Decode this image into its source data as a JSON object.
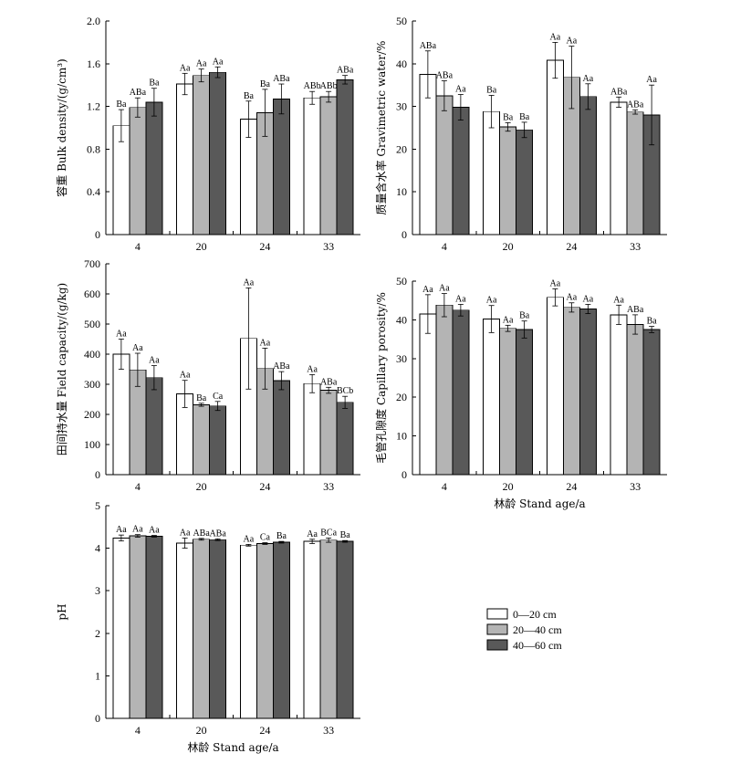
{
  "colors": {
    "s0": "#ffffff",
    "s1": "#b4b4b4",
    "s2": "#595959",
    "stroke": "#000000"
  },
  "legend": {
    "position": "bottom-right",
    "entries": [
      "0—20 cm",
      "20—40 cm",
      "40—60 cm"
    ]
  },
  "chart_data": [
    {
      "id": "bulk",
      "type": "bar",
      "ylabel": "容重 Bulk density/(g/cm³)",
      "xlabel": "",
      "ylim": [
        0,
        2.0
      ],
      "yticks": [
        "0",
        "0.4",
        "0.8",
        "1.2",
        "1.6",
        "2.0"
      ],
      "categories": [
        "4",
        "20",
        "24",
        "33"
      ],
      "series": [
        {
          "name": "0—20 cm",
          "values": [
            1.02,
            1.41,
            1.08,
            1.28
          ],
          "errors": [
            0.15,
            0.1,
            0.17,
            0.06
          ],
          "labels": [
            "Ba",
            "Aa",
            "Ba",
            "ABb"
          ]
        },
        {
          "name": "20—40 cm",
          "values": [
            1.19,
            1.49,
            1.14,
            1.29
          ],
          "errors": [
            0.09,
            0.06,
            0.22,
            0.05
          ],
          "labels": [
            "ABa",
            "Aa",
            "Ba",
            "ABb"
          ]
        },
        {
          "name": "40—60 cm",
          "values": [
            1.24,
            1.52,
            1.27,
            1.45
          ],
          "errors": [
            0.13,
            0.05,
            0.14,
            0.04
          ],
          "labels": [
            "Ba",
            "Aa",
            "ABa",
            "ABa"
          ]
        }
      ]
    },
    {
      "id": "water",
      "type": "bar",
      "ylabel": "质量含水率 Gravimetric water/%",
      "xlabel": "",
      "ylim": [
        0,
        50
      ],
      "yticks": [
        "0",
        "10",
        "20",
        "30",
        "40",
        "50"
      ],
      "categories": [
        "4",
        "20",
        "24",
        "33"
      ],
      "series": [
        {
          "name": "0—20 cm",
          "values": [
            37.5,
            28.8,
            40.8,
            31.0
          ],
          "errors": [
            5.5,
            3.8,
            4.2,
            1.2
          ],
          "labels": [
            "ABa",
            "Ba",
            "Aa",
            "ABa"
          ]
        },
        {
          "name": "20—40 cm",
          "values": [
            32.5,
            25.2,
            36.8,
            28.7
          ],
          "errors": [
            3.5,
            1.0,
            7.3,
            0.5
          ],
          "labels": [
            "ABa",
            "Ba",
            "Aa",
            "ABa"
          ]
        },
        {
          "name": "40—60 cm",
          "values": [
            29.8,
            24.5,
            32.3,
            28.0
          ],
          "errors": [
            3.0,
            1.8,
            3.0,
            7.0
          ],
          "labels": [
            "Aa",
            "Ba",
            "Aa",
            "Aa"
          ]
        }
      ]
    },
    {
      "id": "field",
      "type": "bar",
      "ylabel": "田间持水量 Field capacity/(g/kg)",
      "xlabel": "",
      "ylim": [
        0,
        700
      ],
      "yticks": [
        "0",
        "100",
        "200",
        "300",
        "400",
        "500",
        "600",
        "700"
      ],
      "categories": [
        "4",
        "20",
        "24",
        "33"
      ],
      "series": [
        {
          "name": "0—20 cm",
          "values": [
            400,
            268,
            452,
            302
          ],
          "errors": [
            50,
            45,
            168,
            30
          ],
          "labels": [
            "Aa",
            "Aa",
            "Aa",
            "Aa"
          ]
        },
        {
          "name": "20—40 cm",
          "values": [
            348,
            232,
            352,
            280
          ],
          "errors": [
            55,
            5,
            68,
            10
          ],
          "labels": [
            "Aa",
            "Ba",
            "Aa",
            "ABa"
          ]
        },
        {
          "name": "40—60 cm",
          "values": [
            322,
            228,
            312,
            240
          ],
          "errors": [
            40,
            15,
            30,
            20
          ],
          "labels": [
            "Aa",
            "Ca",
            "ABa",
            "BCb"
          ]
        }
      ]
    },
    {
      "id": "capillary",
      "type": "bar",
      "ylabel": "毛管孔隙度 Capillary porosity/%",
      "xlabel": "林龄 Stand age/a",
      "ylim": [
        0,
        50
      ],
      "yticks": [
        "0",
        "10",
        "20",
        "30",
        "40",
        "50"
      ],
      "categories": [
        "4",
        "20",
        "24",
        "33"
      ],
      "series": [
        {
          "name": "0—20 cm",
          "values": [
            41.5,
            40.2,
            45.8,
            41.3
          ],
          "errors": [
            5.0,
            3.5,
            2.2,
            2.5
          ],
          "labels": [
            "Aa",
            "Aa",
            "Aa",
            "Aa"
          ]
        },
        {
          "name": "20—40 cm",
          "values": [
            43.8,
            37.8,
            43.2,
            38.8
          ],
          "errors": [
            3.0,
            0.8,
            1.2,
            2.5
          ],
          "labels": [
            "Aa",
            "Aa",
            "Aa",
            "ABa"
          ]
        },
        {
          "name": "40—60 cm",
          "values": [
            42.5,
            37.5,
            42.8,
            37.5
          ],
          "errors": [
            1.5,
            2.2,
            1.2,
            0.8
          ],
          "labels": [
            "Aa",
            "Ba",
            "Aa",
            "Ba"
          ]
        }
      ]
    },
    {
      "id": "ph",
      "type": "bar",
      "ylabel": "pH",
      "xlabel": "林龄 Stand age/a",
      "ylim": [
        0,
        5
      ],
      "yticks": [
        "0",
        "1",
        "2",
        "3",
        "4",
        "5"
      ],
      "categories": [
        "4",
        "20",
        "24",
        "33"
      ],
      "series": [
        {
          "name": "0—20 cm",
          "values": [
            4.24,
            4.12,
            4.07,
            4.16
          ],
          "errors": [
            0.07,
            0.12,
            0.02,
            0.05
          ],
          "labels": [
            "Aa",
            "Aa",
            "Aa",
            "Aa"
          ]
        },
        {
          "name": "20—40 cm",
          "values": [
            4.29,
            4.21,
            4.11,
            4.19
          ],
          "errors": [
            0.03,
            0.02,
            0.02,
            0.05
          ],
          "labels": [
            "Aa",
            "ABa",
            "Ca",
            "BCa"
          ]
        },
        {
          "name": "40—60 cm",
          "values": [
            4.28,
            4.2,
            4.14,
            4.16
          ],
          "errors": [
            0.02,
            0.02,
            0.02,
            0.02
          ],
          "labels": [
            "Aa",
            "ABa",
            "Ba",
            "Ba"
          ]
        }
      ]
    }
  ]
}
